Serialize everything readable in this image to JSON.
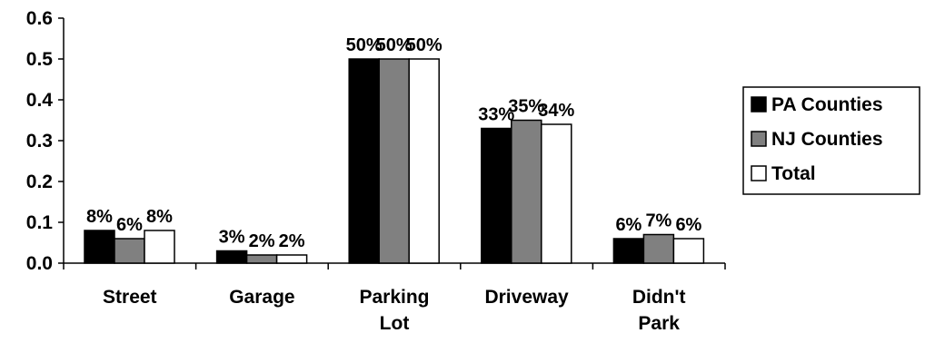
{
  "chart_data": {
    "type": "bar",
    "categories": [
      [
        "Street"
      ],
      [
        "Garage"
      ],
      [
        "Parking",
        "Lot"
      ],
      [
        "Driveway"
      ],
      [
        "Didn't",
        "Park"
      ]
    ],
    "series": [
      {
        "name": "PA Counties",
        "values": [
          0.08,
          0.03,
          0.5,
          0.33,
          0.06
        ],
        "labels": [
          "8%",
          "3%",
          "50%",
          "33%",
          "6%"
        ],
        "color": "#000000"
      },
      {
        "name": "NJ Counties",
        "values": [
          0.06,
          0.02,
          0.5,
          0.35,
          0.07
        ],
        "labels": [
          "6%",
          "2%",
          "50%",
          "35%",
          "7%"
        ],
        "color": "#808080"
      },
      {
        "name": "Total",
        "values": [
          0.08,
          0.02,
          0.5,
          0.34,
          0.06
        ],
        "labels": [
          "8%",
          "2%",
          "50%",
          "34%",
          "6%"
        ],
        "color": "#ffffff"
      }
    ],
    "yticks": [
      "0.0",
      "0.1",
      "0.2",
      "0.3",
      "0.4",
      "0.5",
      "0.6"
    ],
    "ylim": [
      0,
      0.6
    ],
    "title": "",
    "xlabel": "",
    "ylabel": "",
    "grid": false,
    "legend_position": "right"
  }
}
